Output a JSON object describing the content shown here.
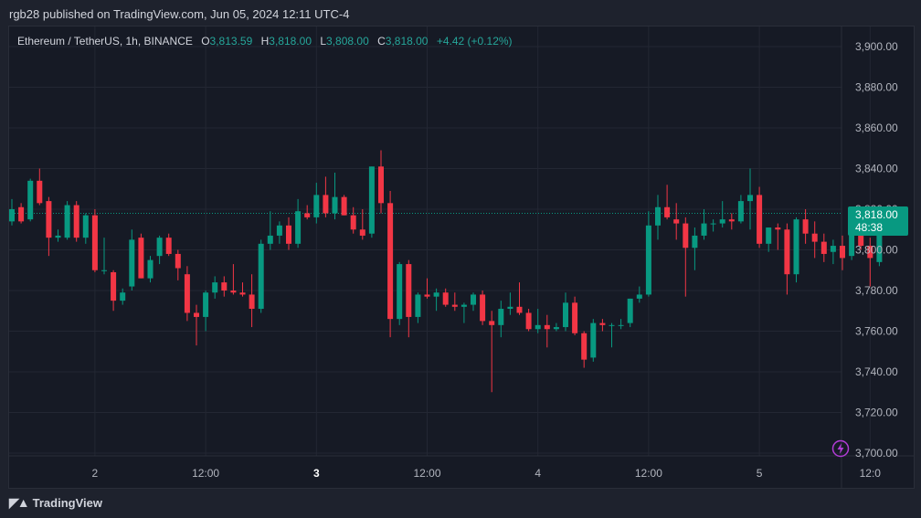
{
  "header": {
    "published_line": "rgb28 published on TradingView.com, Jun 05, 2024 12:11 UTC-4"
  },
  "legend": {
    "symbol": "Ethereum / TetherUS, 1h, BINANCE",
    "open_label": "O",
    "open_value": "3,813.59",
    "high_label": "H",
    "high_value": "3,818.00",
    "low_label": "L",
    "low_value": "3,808.00",
    "close_label": "C",
    "close_value": "3,818.00",
    "change": "+4.42 (+0.12%)"
  },
  "price_tag": {
    "price": "3,818.00",
    "countdown": "48:38"
  },
  "footer": {
    "brand": "TradingView"
  },
  "colors": {
    "up": "#089981",
    "down": "#f23645",
    "background": "#161a25",
    "grid": "#232733"
  },
  "chart_data": {
    "type": "candlestick",
    "title": "Ethereum / TetherUS, 1h, BINANCE",
    "y_ticks": [
      "3,900.00",
      "3,880.00",
      "3,860.00",
      "3,840.00",
      "3,820.00",
      "3,800.00",
      "3,780.00",
      "3,760.00",
      "3,740.00",
      "3,720.00",
      "3,700.00"
    ],
    "y_tick_values": [
      3900,
      3880,
      3860,
      3840,
      3820,
      3800,
      3780,
      3760,
      3740,
      3720,
      3700
    ],
    "ylim": [
      3690,
      3910
    ],
    "x_ticks": [
      {
        "label": "2",
        "index": 9,
        "bold": false
      },
      {
        "label": "12:00",
        "index": 21,
        "bold": false
      },
      {
        "label": "3",
        "index": 33,
        "bold": true
      },
      {
        "label": "12:00",
        "index": 45,
        "bold": false
      },
      {
        "label": "4",
        "index": 57,
        "bold": false
      },
      {
        "label": "12:00",
        "index": 69,
        "bold": false
      },
      {
        "label": "5",
        "index": 81,
        "bold": false
      },
      {
        "label": "12:0",
        "index": 93,
        "bold": false
      }
    ],
    "last_price": 3818.0,
    "grid": true,
    "candles": [
      {
        "o": 3814,
        "h": 3825,
        "l": 3812,
        "c": 3820
      },
      {
        "o": 3821,
        "h": 3823,
        "l": 3813,
        "c": 3814
      },
      {
        "o": 3815,
        "h": 3835,
        "l": 3814,
        "c": 3834
      },
      {
        "o": 3834,
        "h": 3840,
        "l": 3822,
        "c": 3823
      },
      {
        "o": 3824,
        "h": 3826,
        "l": 3797,
        "c": 3806
      },
      {
        "o": 3806,
        "h": 3810,
        "l": 3804,
        "c": 3807
      },
      {
        "o": 3806,
        "h": 3824,
        "l": 3805,
        "c": 3822
      },
      {
        "o": 3822,
        "h": 3824,
        "l": 3804,
        "c": 3806
      },
      {
        "o": 3806,
        "h": 3818,
        "l": 3803,
        "c": 3817
      },
      {
        "o": 3817,
        "h": 3820,
        "l": 3789,
        "c": 3790
      },
      {
        "o": 3790,
        "h": 3806,
        "l": 3788,
        "c": 3790
      },
      {
        "o": 3789,
        "h": 3790,
        "l": 3770,
        "c": 3775
      },
      {
        "o": 3775,
        "h": 3781,
        "l": 3773,
        "c": 3779
      },
      {
        "o": 3782,
        "h": 3810,
        "l": 3780,
        "c": 3805
      },
      {
        "o": 3806,
        "h": 3808,
        "l": 3786,
        "c": 3786
      },
      {
        "o": 3786,
        "h": 3797,
        "l": 3784,
        "c": 3795
      },
      {
        "o": 3797,
        "h": 3807,
        "l": 3793,
        "c": 3806
      },
      {
        "o": 3806,
        "h": 3808,
        "l": 3797,
        "c": 3798
      },
      {
        "o": 3798,
        "h": 3800,
        "l": 3785,
        "c": 3791
      },
      {
        "o": 3788,
        "h": 3792,
        "l": 3765,
        "c": 3769
      },
      {
        "o": 3769,
        "h": 3773,
        "l": 3753,
        "c": 3767
      },
      {
        "o": 3767,
        "h": 3780,
        "l": 3760,
        "c": 3779
      },
      {
        "o": 3779,
        "h": 3787,
        "l": 3776,
        "c": 3784
      },
      {
        "o": 3784,
        "h": 3787,
        "l": 3777,
        "c": 3780
      },
      {
        "o": 3780,
        "h": 3793,
        "l": 3778,
        "c": 3779
      },
      {
        "o": 3779,
        "h": 3784,
        "l": 3777,
        "c": 3778
      },
      {
        "o": 3778,
        "h": 3788,
        "l": 3762,
        "c": 3771
      },
      {
        "o": 3771,
        "h": 3805,
        "l": 3769,
        "c": 3803
      },
      {
        "o": 3803,
        "h": 3819,
        "l": 3800,
        "c": 3807
      },
      {
        "o": 3807,
        "h": 3814,
        "l": 3803,
        "c": 3812
      },
      {
        "o": 3812,
        "h": 3816,
        "l": 3800,
        "c": 3803
      },
      {
        "o": 3803,
        "h": 3825,
        "l": 3801,
        "c": 3819
      },
      {
        "o": 3818,
        "h": 3822,
        "l": 3815,
        "c": 3816
      },
      {
        "o": 3816,
        "h": 3833,
        "l": 3813,
        "c": 3827
      },
      {
        "o": 3827,
        "h": 3836,
        "l": 3816,
        "c": 3818
      },
      {
        "o": 3818,
        "h": 3838,
        "l": 3815,
        "c": 3826
      },
      {
        "o": 3826,
        "h": 3827,
        "l": 3817,
        "c": 3817
      },
      {
        "o": 3817,
        "h": 3821,
        "l": 3808,
        "c": 3810
      },
      {
        "o": 3810,
        "h": 3820,
        "l": 3805,
        "c": 3807
      },
      {
        "o": 3808,
        "h": 3841,
        "l": 3806,
        "c": 3841
      },
      {
        "o": 3841,
        "h": 3849,
        "l": 3818,
        "c": 3823
      },
      {
        "o": 3823,
        "h": 3829,
        "l": 3757,
        "c": 3766
      },
      {
        "o": 3766,
        "h": 3794,
        "l": 3763,
        "c": 3793
      },
      {
        "o": 3793,
        "h": 3795,
        "l": 3757,
        "c": 3767
      },
      {
        "o": 3767,
        "h": 3779,
        "l": 3764,
        "c": 3778
      },
      {
        "o": 3778,
        "h": 3786,
        "l": 3776,
        "c": 3777
      },
      {
        "o": 3777,
        "h": 3781,
        "l": 3770,
        "c": 3779
      },
      {
        "o": 3779,
        "h": 3781,
        "l": 3772,
        "c": 3773
      },
      {
        "o": 3773,
        "h": 3779,
        "l": 3770,
        "c": 3772
      },
      {
        "o": 3772,
        "h": 3774,
        "l": 3764,
        "c": 3773
      },
      {
        "o": 3773,
        "h": 3779,
        "l": 3770,
        "c": 3778
      },
      {
        "o": 3778,
        "h": 3780,
        "l": 3763,
        "c": 3765
      },
      {
        "o": 3765,
        "h": 3770,
        "l": 3730,
        "c": 3763
      },
      {
        "o": 3763,
        "h": 3775,
        "l": 3757,
        "c": 3771
      },
      {
        "o": 3771,
        "h": 3779,
        "l": 3768,
        "c": 3772
      },
      {
        "o": 3772,
        "h": 3784,
        "l": 3768,
        "c": 3769
      },
      {
        "o": 3769,
        "h": 3771,
        "l": 3760,
        "c": 3761
      },
      {
        "o": 3761,
        "h": 3771,
        "l": 3759,
        "c": 3763
      },
      {
        "o": 3763,
        "h": 3768,
        "l": 3752,
        "c": 3761
      },
      {
        "o": 3761,
        "h": 3764,
        "l": 3760,
        "c": 3762
      },
      {
        "o": 3762,
        "h": 3779,
        "l": 3760,
        "c": 3774
      },
      {
        "o": 3774,
        "h": 3777,
        "l": 3758,
        "c": 3759
      },
      {
        "o": 3759,
        "h": 3760,
        "l": 3742,
        "c": 3746
      },
      {
        "o": 3747,
        "h": 3766,
        "l": 3745,
        "c": 3764
      },
      {
        "o": 3764,
        "h": 3766,
        "l": 3760,
        "c": 3763
      },
      {
        "o": 3763,
        "h": 3764,
        "l": 3752,
        "c": 3763
      },
      {
        "o": 3763,
        "h": 3766,
        "l": 3761,
        "c": 3763
      },
      {
        "o": 3764,
        "h": 3776,
        "l": 3762,
        "c": 3776
      },
      {
        "o": 3776,
        "h": 3782,
        "l": 3774,
        "c": 3778
      },
      {
        "o": 3778,
        "h": 3819,
        "l": 3777,
        "c": 3812
      },
      {
        "o": 3812,
        "h": 3827,
        "l": 3805,
        "c": 3821
      },
      {
        "o": 3821,
        "h": 3832,
        "l": 3815,
        "c": 3816
      },
      {
        "o": 3815,
        "h": 3823,
        "l": 3805,
        "c": 3813
      },
      {
        "o": 3813,
        "h": 3816,
        "l": 3777,
        "c": 3801
      },
      {
        "o": 3801,
        "h": 3811,
        "l": 3790,
        "c": 3807
      },
      {
        "o": 3807,
        "h": 3820,
        "l": 3805,
        "c": 3813
      },
      {
        "o": 3813,
        "h": 3815,
        "l": 3809,
        "c": 3813
      },
      {
        "o": 3813,
        "h": 3824,
        "l": 3811,
        "c": 3815
      },
      {
        "o": 3815,
        "h": 3818,
        "l": 3810,
        "c": 3814
      },
      {
        "o": 3814,
        "h": 3827,
        "l": 3813,
        "c": 3824
      },
      {
        "o": 3824,
        "h": 3840,
        "l": 3810,
        "c": 3827
      },
      {
        "o": 3827,
        "h": 3831,
        "l": 3801,
        "c": 3803
      },
      {
        "o": 3803,
        "h": 3811,
        "l": 3799,
        "c": 3811
      },
      {
        "o": 3811,
        "h": 3813,
        "l": 3800,
        "c": 3810
      },
      {
        "o": 3810,
        "h": 3813,
        "l": 3778,
        "c": 3788
      },
      {
        "o": 3788,
        "h": 3816,
        "l": 3784,
        "c": 3815
      },
      {
        "o": 3815,
        "h": 3820,
        "l": 3803,
        "c": 3808
      },
      {
        "o": 3808,
        "h": 3814,
        "l": 3796,
        "c": 3804
      },
      {
        "o": 3804,
        "h": 3808,
        "l": 3794,
        "c": 3798
      },
      {
        "o": 3799,
        "h": 3805,
        "l": 3793,
        "c": 3802
      },
      {
        "o": 3802,
        "h": 3807,
        "l": 3790,
        "c": 3796
      },
      {
        "o": 3797,
        "h": 3821,
        "l": 3795,
        "c": 3818
      },
      {
        "o": 3818,
        "h": 3820,
        "l": 3800,
        "c": 3802
      },
      {
        "o": 3802,
        "h": 3806,
        "l": 3782,
        "c": 3796
      },
      {
        "o": 3794,
        "h": 3817,
        "l": 3792,
        "c": 3813
      },
      {
        "o": 3813.59,
        "h": 3818,
        "l": 3808,
        "c": 3818
      }
    ]
  }
}
